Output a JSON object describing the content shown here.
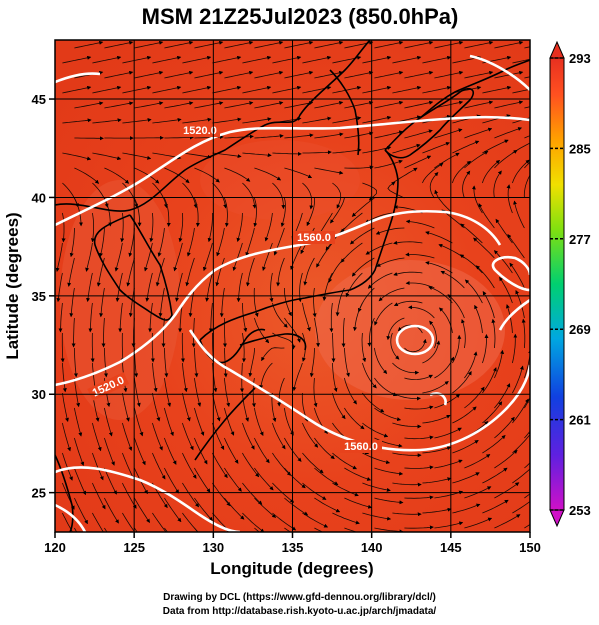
{
  "title": "MSM 21Z25Jul2023 (850.0hPa)",
  "map": {
    "lon_range": [
      120,
      150
    ],
    "lat_range": [
      23,
      48
    ],
    "lon_ticks": [
      "120",
      "125",
      "130",
      "135",
      "140",
      "145",
      "150"
    ],
    "lat_ticks": [
      "25",
      "30",
      "35",
      "40",
      "45"
    ],
    "xlabel": "Longitude (degrees)",
    "ylabel": "Latitude  (degrees)",
    "contour_labels": [
      "1520.0",
      "1560.0",
      "1560.0",
      "1520.0"
    ],
    "field_color": "#e8401c",
    "contour_color": "#ffffff",
    "coast_color": "#000000"
  },
  "colorbar": {
    "ticks": [
      "293",
      "285",
      "277",
      "269",
      "261",
      "253"
    ],
    "range": [
      253,
      293
    ],
    "colors": [
      "#cc10c0",
      "#4020e0",
      "#00a0e8",
      "#20d090",
      "#50e020",
      "#c8e000",
      "#ffd000",
      "#ff9000",
      "#ff5020",
      "#e82010"
    ]
  },
  "credits": {
    "line1": "Drawing by DCL (https://www.gfd-dennou.org/library/dcl/)",
    "line2": "Data from http://database.rish.kyoto-u.ac.jp/arch/jmadata/"
  }
}
